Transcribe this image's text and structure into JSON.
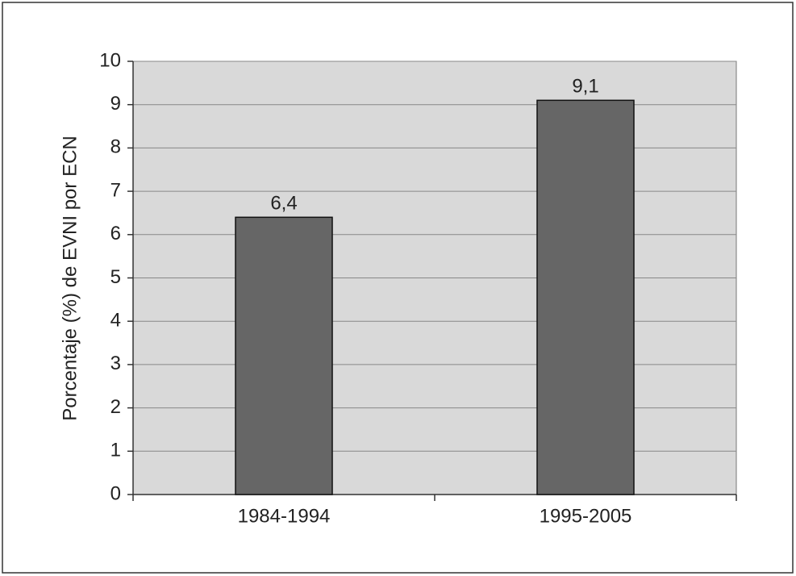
{
  "chart_data": {
    "type": "bar",
    "y_label": "Porcentaje (%) de EVNI por ECN",
    "categories": [
      "1984-1994",
      "1995-2005"
    ],
    "values": [
      6.4,
      9.1
    ],
    "value_labels": [
      "6,4",
      "9,1"
    ],
    "color": "#666666",
    "ylim": [
      0,
      10
    ],
    "yticks": [
      0,
      1,
      2,
      3,
      4,
      5,
      6,
      7,
      8,
      9,
      10
    ],
    "grid": true
  }
}
